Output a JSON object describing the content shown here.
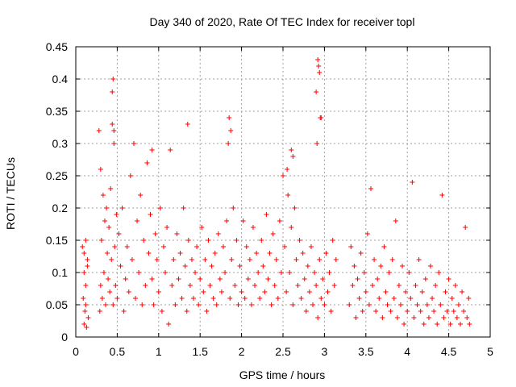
{
  "chart_data": {
    "type": "scatter",
    "title": "Day 340 of 2020, Rate Of TEC Index for receiver topl",
    "xlabel": "GPS time / hours",
    "ylabel": "ROTI / TECUs",
    "xlim": [
      0,
      5
    ],
    "ylim": [
      0,
      0.45
    ],
    "xticks": [
      0,
      0.5,
      1,
      1.5,
      2,
      2.5,
      3,
      3.5,
      4,
      4.5,
      5
    ],
    "xtick_labels": [
      "0",
      "0.5",
      "1",
      "1.5",
      "2",
      "2.5",
      "3",
      "3.5",
      "4",
      "4.5",
      "5"
    ],
    "yticks": [
      0,
      0.05,
      0.1,
      0.15,
      0.2,
      0.25,
      0.3,
      0.35,
      0.4,
      0.45
    ],
    "ytick_labels": [
      "0",
      "0.05",
      "0.1",
      "0.15",
      "0.2",
      "0.25",
      "0.3",
      "0.35",
      "0.4",
      "0.45"
    ],
    "grid": true,
    "marker": "+",
    "color": "#ff0000",
    "series": [
      {
        "name": "ROTI",
        "x": [
          0.08,
          0.09,
          0.1,
          0.1,
          0.11,
          0.12,
          0.12,
          0.13,
          0.14,
          0.15,
          0.1,
          0.12,
          0.14,
          0.28,
          0.29,
          0.3,
          0.3,
          0.31,
          0.32,
          0.33,
          0.34,
          0.35,
          0.36,
          0.37,
          0.38,
          0.39,
          0.4,
          0.41,
          0.42,
          0.43,
          0.44,
          0.45,
          0.46,
          0.47,
          0.48,
          0.49,
          0.5,
          0.52,
          0.54,
          0.56,
          0.58,
          0.6,
          0.62,
          0.64,
          0.66,
          0.68,
          0.7,
          0.72,
          0.74,
          0.76,
          0.78,
          0.8,
          0.82,
          0.84,
          0.86,
          0.88,
          0.9,
          0.92,
          0.94,
          0.96,
          0.98,
          1.0,
          1.02,
          1.04,
          1.06,
          1.08,
          1.1,
          1.12,
          1.14,
          1.16,
          1.18,
          1.2,
          1.22,
          1.24,
          1.26,
          1.28,
          1.3,
          1.32,
          1.34,
          1.36,
          1.38,
          1.4,
          1.42,
          1.44,
          1.46,
          1.48,
          1.5,
          1.52,
          1.54,
          1.56,
          1.58,
          1.6,
          1.62,
          1.64,
          1.66,
          1.68,
          1.7,
          1.72,
          1.74,
          1.76,
          1.78,
          1.8,
          1.82,
          1.84,
          1.86,
          1.88,
          1.9,
          1.92,
          1.94,
          1.96,
          1.98,
          2.0,
          2.02,
          2.04,
          2.06,
          2.08,
          2.1,
          2.12,
          2.14,
          2.16,
          2.18,
          2.2,
          2.22,
          2.24,
          2.26,
          2.28,
          2.3,
          2.32,
          2.34,
          2.36,
          2.38,
          2.4,
          2.42,
          2.44,
          2.46,
          2.48,
          2.5,
          2.52,
          2.54,
          2.56,
          2.58,
          2.6,
          2.62,
          2.64,
          2.66,
          2.68,
          2.7,
          2.72,
          2.74,
          2.76,
          2.78,
          2.8,
          2.82,
          2.84,
          2.86,
          2.88,
          2.9,
          2.92,
          2.94,
          2.96,
          2.98,
          3.0,
          3.02,
          3.04,
          3.06,
          3.08,
          3.1,
          3.12,
          3.14,
          3.3,
          3.32,
          3.34,
          3.36,
          3.38,
          3.4,
          3.42,
          3.44,
          3.46,
          3.48,
          3.5,
          3.52,
          3.54,
          3.56,
          3.58,
          3.6,
          3.62,
          3.64,
          3.66,
          3.68,
          3.7,
          3.72,
          3.74,
          3.76,
          3.78,
          3.8,
          3.82,
          3.84,
          3.86,
          3.88,
          3.9,
          3.92,
          3.94,
          3.96,
          3.98,
          4.0,
          4.02,
          4.04,
          4.06,
          4.08,
          4.1,
          4.12,
          4.14,
          4.16,
          4.18,
          4.2,
          4.22,
          4.24,
          4.26,
          4.28,
          4.3,
          4.32,
          4.34,
          4.36,
          4.38,
          4.4,
          4.42,
          4.44,
          4.46,
          4.48,
          4.5,
          4.52,
          4.54,
          4.56,
          4.58,
          4.6,
          4.62,
          4.64,
          4.66,
          4.68,
          4.7,
          4.72,
          4.74,
          4.75,
          0.45,
          0.44,
          0.46,
          0.92,
          1.35,
          1.85,
          1.87,
          2.92,
          2.93,
          2.94,
          2.95,
          2.91,
          2.9,
          2.96,
          2.6,
          2.62,
          2.55
        ],
        "y": [
          0.14,
          0.06,
          0.02,
          0.13,
          0.04,
          0.15,
          0.08,
          0.015,
          0.11,
          0.03,
          0.1,
          0.05,
          0.12,
          0.32,
          0.04,
          0.26,
          0.08,
          0.15,
          0.06,
          0.22,
          0.1,
          0.18,
          0.05,
          0.2,
          0.13,
          0.09,
          0.17,
          0.07,
          0.23,
          0.12,
          0.33,
          0.05,
          0.3,
          0.14,
          0.08,
          0.19,
          0.06,
          0.16,
          0.11,
          0.2,
          0.04,
          0.09,
          0.14,
          0.07,
          0.25,
          0.12,
          0.3,
          0.06,
          0.18,
          0.1,
          0.22,
          0.05,
          0.15,
          0.08,
          0.27,
          0.13,
          0.19,
          0.09,
          0.05,
          0.16,
          0.12,
          0.07,
          0.2,
          0.04,
          0.14,
          0.1,
          0.17,
          0.02,
          0.29,
          0.08,
          0.12,
          0.05,
          0.16,
          0.09,
          0.13,
          0.06,
          0.2,
          0.11,
          0.04,
          0.15,
          0.08,
          0.12,
          0.06,
          0.1,
          0.14,
          0.05,
          0.09,
          0.17,
          0.07,
          0.12,
          0.04,
          0.15,
          0.08,
          0.11,
          0.06,
          0.13,
          0.05,
          0.16,
          0.09,
          0.07,
          0.14,
          0.1,
          0.18,
          0.3,
          0.06,
          0.12,
          0.2,
          0.08,
          0.15,
          0.05,
          0.11,
          0.07,
          0.18,
          0.06,
          0.14,
          0.09,
          0.12,
          0.05,
          0.17,
          0.08,
          0.13,
          0.1,
          0.06,
          0.15,
          0.11,
          0.07,
          0.19,
          0.09,
          0.13,
          0.05,
          0.16,
          0.08,
          0.12,
          0.06,
          0.18,
          0.1,
          0.25,
          0.14,
          0.07,
          0.22,
          0.1,
          0.17,
          0.05,
          0.2,
          0.12,
          0.08,
          0.15,
          0.06,
          0.13,
          0.09,
          0.04,
          0.11,
          0.07,
          0.14,
          0.05,
          0.1,
          0.08,
          0.03,
          0.12,
          0.06,
          0.09,
          0.05,
          0.13,
          0.07,
          0.1,
          0.04,
          0.15,
          0.08,
          0.12,
          0.05,
          0.14,
          0.08,
          0.11,
          0.03,
          0.09,
          0.06,
          0.13,
          0.04,
          0.1,
          0.07,
          0.16,
          0.05,
          0.23,
          0.08,
          0.12,
          0.04,
          0.09,
          0.06,
          0.11,
          0.03,
          0.14,
          0.07,
          0.05,
          0.1,
          0.04,
          0.12,
          0.06,
          0.18,
          0.03,
          0.08,
          0.05,
          0.11,
          0.02,
          0.07,
          0.04,
          0.1,
          0.06,
          0.24,
          0.03,
          0.08,
          0.05,
          0.12,
          0.04,
          0.07,
          0.02,
          0.09,
          0.05,
          0.03,
          0.11,
          0.06,
          0.04,
          0.08,
          0.02,
          0.1,
          0.05,
          0.22,
          0.03,
          0.07,
          0.04,
          0.09,
          0.02,
          0.06,
          0.04,
          0.08,
          0.03,
          0.05,
          0.02,
          0.07,
          0.04,
          0.17,
          0.03,
          0.06,
          0.02,
          0.4,
          0.38,
          0.32,
          0.29,
          0.33,
          0.34,
          0.32,
          0.43,
          0.42,
          0.41,
          0.34,
          0.3,
          0.38,
          0.34,
          0.29,
          0.28,
          0.26
        ]
      }
    ]
  }
}
